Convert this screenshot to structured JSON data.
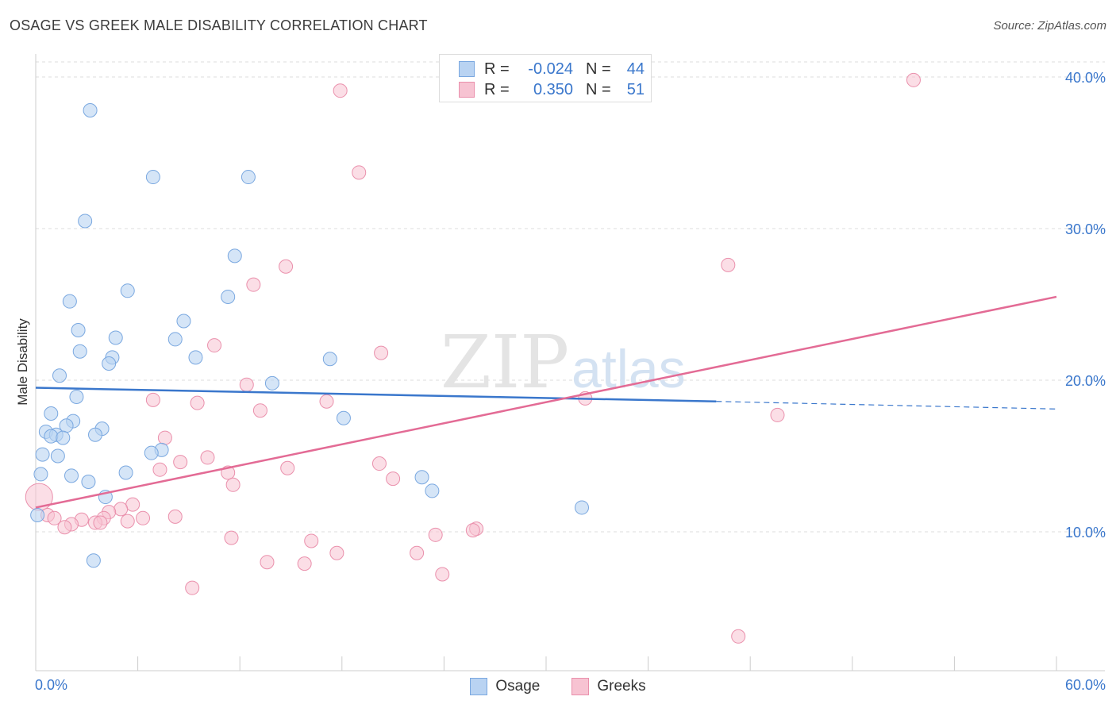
{
  "title": "OSAGE VS GREEK MALE DISABILITY CORRELATION CHART",
  "source": "Source: ZipAtlas.com",
  "watermark": {
    "zip": "ZIP",
    "atlas": "atlas"
  },
  "colors": {
    "osage_fill": "#b9d3f2",
    "osage_stroke": "#7aa8e0",
    "osage_line": "#3a77cc",
    "greeks_fill": "#f7c3d2",
    "greeks_stroke": "#ea90ac",
    "greeks_line": "#e36b95",
    "tick_label": "#3a77cc",
    "grid": "#dddddd"
  },
  "stats": {
    "osage": {
      "r_label": "R =",
      "r_value": "-0.024",
      "n_label": "N =",
      "n_value": "44"
    },
    "greeks": {
      "r_label": "R =",
      "r_value": "0.350",
      "n_label": "N =",
      "n_value": "51"
    }
  },
  "legend": {
    "osage": "Osage",
    "greeks": "Greeks"
  },
  "chart_data": {
    "type": "scatter",
    "title": "OSAGE VS GREEK MALE DISABILITY CORRELATION CHART",
    "xlabel": "",
    "ylabel": "Male Disability",
    "xlim": [
      0,
      60
    ],
    "ylim": [
      0,
      40
    ],
    "x_tick_labels": [
      "0.0%",
      "60.0%"
    ],
    "y_ticks": [
      10,
      20,
      30,
      40
    ],
    "y_tick_labels": [
      "10.0%",
      "20.0%",
      "30.0%",
      "40.0%"
    ],
    "grid": true,
    "legend_position": "bottom-center",
    "series": [
      {
        "name": "Osage",
        "r": -0.024,
        "n": 44,
        "trend": {
          "x": [
            0,
            40
          ],
          "y": [
            19.5,
            18.6
          ],
          "dashed_to": [
            60,
            18.1
          ]
        },
        "points": [
          [
            3.2,
            37.8
          ],
          [
            6.9,
            33.4
          ],
          [
            12.5,
            33.4
          ],
          [
            2.9,
            30.5
          ],
          [
            11.7,
            28.2
          ],
          [
            5.4,
            25.9
          ],
          [
            2.0,
            25.2
          ],
          [
            11.3,
            25.5
          ],
          [
            8.7,
            23.9
          ],
          [
            2.5,
            23.3
          ],
          [
            4.7,
            22.8
          ],
          [
            8.2,
            22.7
          ],
          [
            2.6,
            21.9
          ],
          [
            4.5,
            21.5
          ],
          [
            9.4,
            21.5
          ],
          [
            4.3,
            21.1
          ],
          [
            17.3,
            21.4
          ],
          [
            1.4,
            20.3
          ],
          [
            13.9,
            19.8
          ],
          [
            2.4,
            18.9
          ],
          [
            0.9,
            17.8
          ],
          [
            18.1,
            17.5
          ],
          [
            2.2,
            17.3
          ],
          [
            1.8,
            17.0
          ],
          [
            0.6,
            16.6
          ],
          [
            1.2,
            16.4
          ],
          [
            3.9,
            16.8
          ],
          [
            0.9,
            16.3
          ],
          [
            1.6,
            16.2
          ],
          [
            3.5,
            16.4
          ],
          [
            7.4,
            15.4
          ],
          [
            6.8,
            15.2
          ],
          [
            0.4,
            15.1
          ],
          [
            1.3,
            15.0
          ],
          [
            0.3,
            13.8
          ],
          [
            2.1,
            13.7
          ],
          [
            5.3,
            13.9
          ],
          [
            22.7,
            13.6
          ],
          [
            3.1,
            13.3
          ],
          [
            23.3,
            12.7
          ],
          [
            4.1,
            12.3
          ],
          [
            32.1,
            11.6
          ],
          [
            0.1,
            11.1
          ],
          [
            3.4,
            8.1
          ]
        ]
      },
      {
        "name": "Greeks",
        "r": 0.35,
        "n": 51,
        "trend": {
          "x": [
            0,
            60
          ],
          "y": [
            11.6,
            25.5
          ]
        },
        "points": [
          [
            17.9,
            39.1
          ],
          [
            51.6,
            39.8
          ],
          [
            19.0,
            33.7
          ],
          [
            14.7,
            27.5
          ],
          [
            40.7,
            27.6
          ],
          [
            12.8,
            26.3
          ],
          [
            10.5,
            22.3
          ],
          [
            20.3,
            21.8
          ],
          [
            12.4,
            19.7
          ],
          [
            6.9,
            18.7
          ],
          [
            9.5,
            18.5
          ],
          [
            17.1,
            18.6
          ],
          [
            32.3,
            18.8
          ],
          [
            13.2,
            18.0
          ],
          [
            43.6,
            17.7
          ],
          [
            7.6,
            16.2
          ],
          [
            10.1,
            14.9
          ],
          [
            8.5,
            14.6
          ],
          [
            20.2,
            14.5
          ],
          [
            14.8,
            14.2
          ],
          [
            7.3,
            14.1
          ],
          [
            11.3,
            13.9
          ],
          [
            21.0,
            13.5
          ],
          [
            11.6,
            13.1
          ],
          [
            0.2,
            12.3
          ],
          [
            5.7,
            11.8
          ],
          [
            5.0,
            11.5
          ],
          [
            4.3,
            11.3
          ],
          [
            8.2,
            11.0
          ],
          [
            6.3,
            10.9
          ],
          [
            0.7,
            11.1
          ],
          [
            1.1,
            10.9
          ],
          [
            2.7,
            10.8
          ],
          [
            4.0,
            10.9
          ],
          [
            5.4,
            10.7
          ],
          [
            3.5,
            10.6
          ],
          [
            2.1,
            10.5
          ],
          [
            3.8,
            10.6
          ],
          [
            1.7,
            10.3
          ],
          [
            25.9,
            10.2
          ],
          [
            25.7,
            10.1
          ],
          [
            23.5,
            9.8
          ],
          [
            11.5,
            9.6
          ],
          [
            16.2,
            9.4
          ],
          [
            17.7,
            8.6
          ],
          [
            22.4,
            8.6
          ],
          [
            13.6,
            8.0
          ],
          [
            15.8,
            7.9
          ],
          [
            23.9,
            7.2
          ],
          [
            9.2,
            6.3
          ],
          [
            41.3,
            3.1
          ]
        ]
      }
    ]
  }
}
